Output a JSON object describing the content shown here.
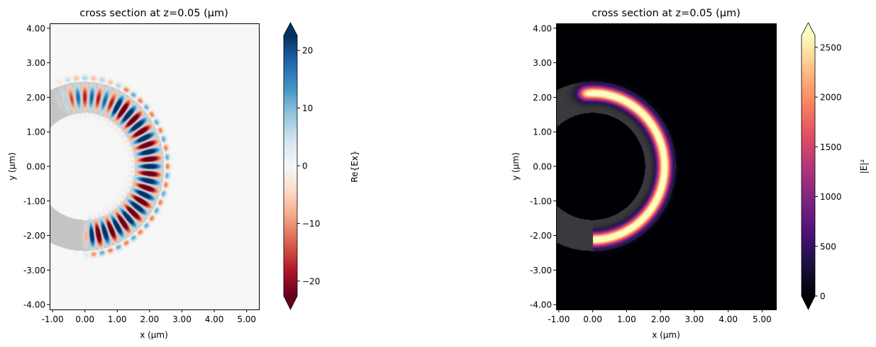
{
  "chart_data": [
    {
      "type": "heatmap",
      "title": "cross section at z=0.05 (µm)",
      "xlabel": "x (µm)",
      "ylabel": "y (µm)",
      "xlim": [
        -1.09,
        5.38
      ],
      "ylim": [
        -4.14,
        4.14
      ],
      "xticks": [
        -1,
        0,
        1,
        2,
        3,
        4,
        5
      ],
      "xtick_labels": [
        "-1.00",
        "0.00",
        "1.00",
        "2.00",
        "3.00",
        "4.00",
        "5.00"
      ],
      "yticks": [
        4,
        3,
        2,
        1,
        0,
        -1,
        -2,
        -3,
        -4
      ],
      "ytick_labels": [
        "4.00",
        "3.00",
        "2.00",
        "1.00",
        "0.00",
        "-1.00",
        "-2.00",
        "-3.00",
        "-4.00"
      ],
      "colormap": "RdBu_r",
      "colorbar": {
        "label": "Re{Ex}",
        "range": [
          -22.6,
          22.6
        ],
        "ticks": [
          20,
          10,
          0,
          -10,
          -20
        ],
        "tick_labels": [
          "20",
          "10",
          "0",
          "−10",
          "−20"
        ],
        "extend": "both"
      },
      "field": {
        "quantity": "Re{Ex}",
        "ring_inner_radius": 1.55,
        "ring_outer_radius": 2.45,
        "structure_color": "#c4c4c4"
      }
    },
    {
      "type": "heatmap",
      "title": "cross section at z=0.05 (µm)",
      "xlabel": "x (µm)",
      "ylabel": "y (µm)",
      "xlim": [
        -1.08,
        5.41
      ],
      "ylim": [
        -4.14,
        4.14
      ],
      "xticks": [
        -1,
        0,
        1,
        2,
        3,
        4,
        5
      ],
      "xtick_labels": [
        "-1.00",
        "0.00",
        "1.00",
        "2.00",
        "3.00",
        "4.00",
        "5.00"
      ],
      "yticks": [
        4,
        3,
        2,
        1,
        0,
        -1,
        -2,
        -3,
        -4
      ],
      "ytick_labels": [
        "4.00",
        "3.00",
        "2.00",
        "1.00",
        "0.00",
        "-1.00",
        "-2.00",
        "-3.00",
        "-4.00"
      ],
      "colormap": "magma",
      "colorbar": {
        "label": "|E|²",
        "range": [
          0,
          2620
        ],
        "ticks": [
          2500,
          2000,
          1500,
          1000,
          500,
          0
        ],
        "tick_labels": [
          "2500",
          "2000",
          "1500",
          "1000",
          "500",
          "0"
        ],
        "extend": "both"
      },
      "field": {
        "quantity": "|E|²",
        "ring_inner_radius": 1.55,
        "ring_outer_radius": 2.45,
        "structure_color": "#3a393d"
      }
    }
  ]
}
